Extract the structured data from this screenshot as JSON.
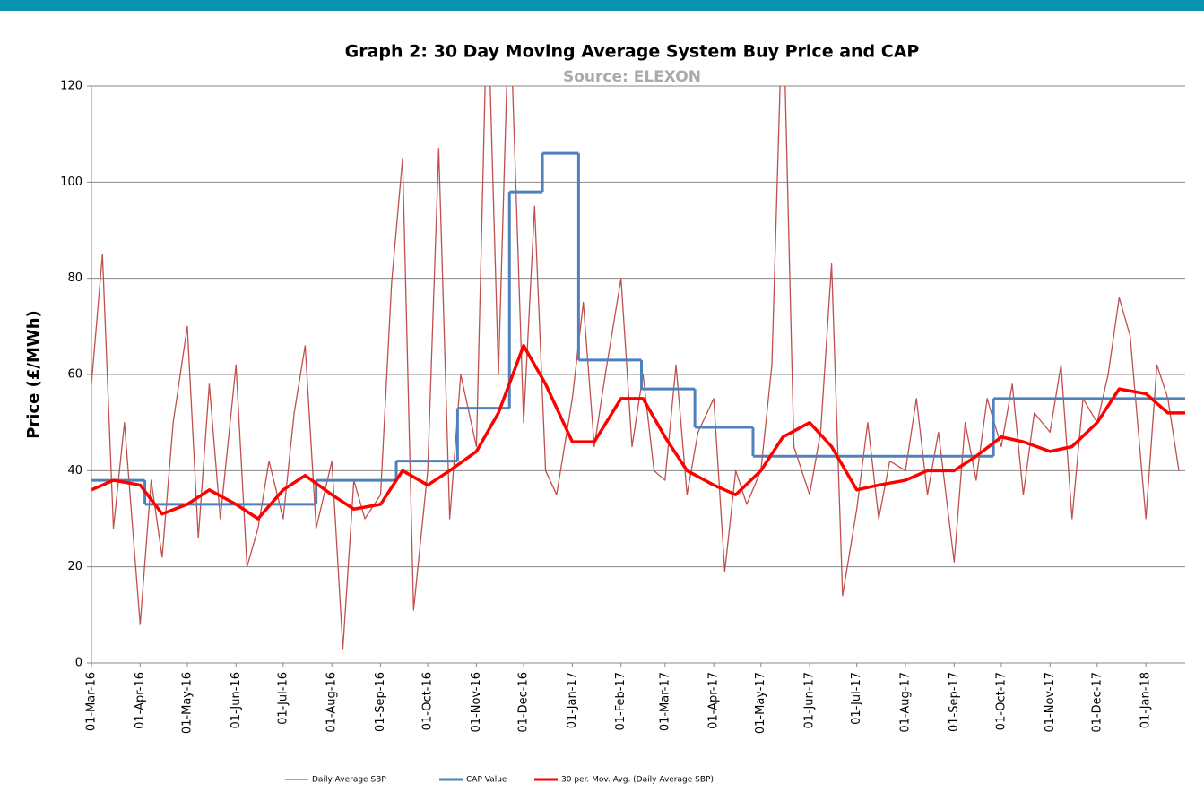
{
  "chart_data": {
    "type": "line",
    "title": "Graph 2: 30 Day Moving Average System Buy Price and CAP",
    "subtitle": "Source: ELEXON",
    "y_label": "Price (£/MWh)",
    "xlim": [
      "2016-03-01",
      "2018-01-26"
    ],
    "xticks": [
      {
        "value": "2016-03-01",
        "label": "01-Mar-16"
      },
      {
        "value": "2016-04-01",
        "label": "01-Apr-16"
      },
      {
        "value": "2016-05-01",
        "label": "01-May-16"
      },
      {
        "value": "2016-06-01",
        "label": "01-Jun-16"
      },
      {
        "value": "2016-07-01",
        "label": "01-Jul-16"
      },
      {
        "value": "2016-08-01",
        "label": "01-Aug-16"
      },
      {
        "value": "2016-09-01",
        "label": "01-Sep-16"
      },
      {
        "value": "2016-10-01",
        "label": "01-Oct-16"
      },
      {
        "value": "2016-11-01",
        "label": "01-Nov-16"
      },
      {
        "value": "2016-12-01",
        "label": "01-Dec-16"
      },
      {
        "value": "2017-01-01",
        "label": "01-Jan-17"
      },
      {
        "value": "2017-02-01",
        "label": "01-Feb-17"
      },
      {
        "value": "2017-03-01",
        "label": "01-Mar-17"
      },
      {
        "value": "2017-04-01",
        "label": "01-Apr-17"
      },
      {
        "value": "2017-05-01",
        "label": "01-May-17"
      },
      {
        "value": "2017-06-01",
        "label": "01-Jun-17"
      },
      {
        "value": "2017-07-01",
        "label": "01-Jul-17"
      },
      {
        "value": "2017-08-01",
        "label": "01-Aug-17"
      },
      {
        "value": "2017-09-01",
        "label": "01-Sep-17"
      },
      {
        "value": "2017-10-01",
        "label": "01-Oct-17"
      },
      {
        "value": "2017-11-01",
        "label": "01-Nov-17"
      },
      {
        "value": "2017-12-01",
        "label": "01-Dec-17"
      },
      {
        "value": "2018-01-01",
        "label": "01-Jan-18"
      }
    ],
    "ylim": [
      0,
      120
    ],
    "yticks": [
      0,
      20,
      40,
      60,
      80,
      100,
      120
    ],
    "grid": true,
    "legend": "bottom",
    "series": [
      {
        "name": "Daily Average SBP",
        "color": "#c0504d",
        "width": 1.3,
        "x": [
          "2016-03-01",
          "2016-03-08",
          "2016-03-15",
          "2016-03-22",
          "2016-04-01",
          "2016-04-08",
          "2016-04-15",
          "2016-04-22",
          "2016-05-01",
          "2016-05-08",
          "2016-05-15",
          "2016-05-22",
          "2016-06-01",
          "2016-06-08",
          "2016-06-15",
          "2016-06-22",
          "2016-07-01",
          "2016-07-08",
          "2016-07-15",
          "2016-07-22",
          "2016-08-01",
          "2016-08-08",
          "2016-08-15",
          "2016-08-22",
          "2016-09-01",
          "2016-09-08",
          "2016-09-15",
          "2016-09-22",
          "2016-10-01",
          "2016-10-08",
          "2016-10-15",
          "2016-10-22",
          "2016-11-01",
          "2016-11-08",
          "2016-11-15",
          "2016-11-22",
          "2016-12-01",
          "2016-12-08",
          "2016-12-15",
          "2016-12-22",
          "2017-01-01",
          "2017-01-08",
          "2017-01-15",
          "2017-01-22",
          "2017-02-01",
          "2017-02-08",
          "2017-02-15",
          "2017-02-22",
          "2017-03-01",
          "2017-03-08",
          "2017-03-15",
          "2017-03-22",
          "2017-04-01",
          "2017-04-08",
          "2017-04-15",
          "2017-04-22",
          "2017-05-01",
          "2017-05-08",
          "2017-05-15",
          "2017-05-22",
          "2017-06-01",
          "2017-06-08",
          "2017-06-15",
          "2017-06-22",
          "2017-07-01",
          "2017-07-08",
          "2017-07-15",
          "2017-07-22",
          "2017-08-01",
          "2017-08-08",
          "2017-08-15",
          "2017-08-22",
          "2017-09-01",
          "2017-09-08",
          "2017-09-15",
          "2017-09-22",
          "2017-10-01",
          "2017-10-08",
          "2017-10-15",
          "2017-10-22",
          "2017-11-01",
          "2017-11-08",
          "2017-11-15",
          "2017-11-22",
          "2017-12-01",
          "2017-12-08",
          "2017-12-15",
          "2017-12-22",
          "2018-01-01",
          "2018-01-08",
          "2018-01-15",
          "2018-01-22"
        ],
        "values": [
          58,
          85,
          28,
          50,
          8,
          38,
          22,
          50,
          70,
          26,
          58,
          30,
          62,
          20,
          28,
          42,
          30,
          52,
          66,
          28,
          42,
          3,
          38,
          30,
          35,
          79,
          105,
          11,
          40,
          107,
          30,
          60,
          45,
          140,
          60,
          140,
          50,
          95,
          40,
          35,
          55,
          75,
          45,
          60,
          80,
          45,
          60,
          40,
          38,
          62,
          35,
          48,
          55,
          19,
          40,
          33,
          40,
          62,
          140,
          45,
          35,
          48,
          83,
          14,
          32,
          50,
          30,
          42,
          40,
          55,
          35,
          48,
          21,
          50,
          38,
          55,
          45,
          58,
          35,
          52,
          48,
          62,
          30,
          55,
          50,
          60,
          76,
          68,
          30,
          62,
          55,
          40
        ]
      },
      {
        "name": "CAP Value",
        "color": "#4f81bd",
        "width": 3,
        "drawstyle": "steps-post",
        "x": [
          "2016-03-01",
          "2016-04-04",
          "2016-07-22",
          "2016-09-11",
          "2016-10-20",
          "2016-11-22",
          "2016-12-13",
          "2017-01-05",
          "2017-02-14",
          "2017-03-20",
          "2017-04-26",
          "2017-09-26"
        ],
        "values": [
          38,
          33,
          38,
          42,
          53,
          98,
          106,
          63,
          57,
          49,
          43,
          55
        ]
      },
      {
        "name": "30 per. Mov. Avg. (Daily Average SBP)",
        "color": "#ff0000",
        "width": 3.5,
        "x": [
          "2016-03-01",
          "2016-03-15",
          "2016-04-01",
          "2016-04-15",
          "2016-05-01",
          "2016-05-15",
          "2016-06-01",
          "2016-06-15",
          "2016-07-01",
          "2016-07-15",
          "2016-08-01",
          "2016-08-15",
          "2016-09-01",
          "2016-09-15",
          "2016-10-01",
          "2016-10-15",
          "2016-11-01",
          "2016-11-15",
          "2016-12-01",
          "2016-12-15",
          "2017-01-01",
          "2017-01-15",
          "2017-02-01",
          "2017-02-15",
          "2017-03-01",
          "2017-03-15",
          "2017-04-01",
          "2017-04-15",
          "2017-05-01",
          "2017-05-15",
          "2017-06-01",
          "2017-06-15",
          "2017-07-01",
          "2017-07-15",
          "2017-08-01",
          "2017-08-15",
          "2017-09-01",
          "2017-09-15",
          "2017-10-01",
          "2017-10-15",
          "2017-11-01",
          "2017-11-15",
          "2017-12-01",
          "2017-12-15",
          "2018-01-01",
          "2018-01-15",
          "2018-01-26"
        ],
        "values": [
          36,
          38,
          37,
          31,
          33,
          36,
          33,
          30,
          36,
          39,
          35,
          32,
          33,
          40,
          37,
          40,
          44,
          52,
          66,
          58,
          46,
          46,
          55,
          55,
          47,
          40,
          37,
          35,
          40,
          47,
          50,
          45,
          36,
          37,
          38,
          40,
          40,
          43,
          47,
          46,
          44,
          45,
          50,
          57,
          56,
          52,
          52
        ]
      }
    ]
  }
}
